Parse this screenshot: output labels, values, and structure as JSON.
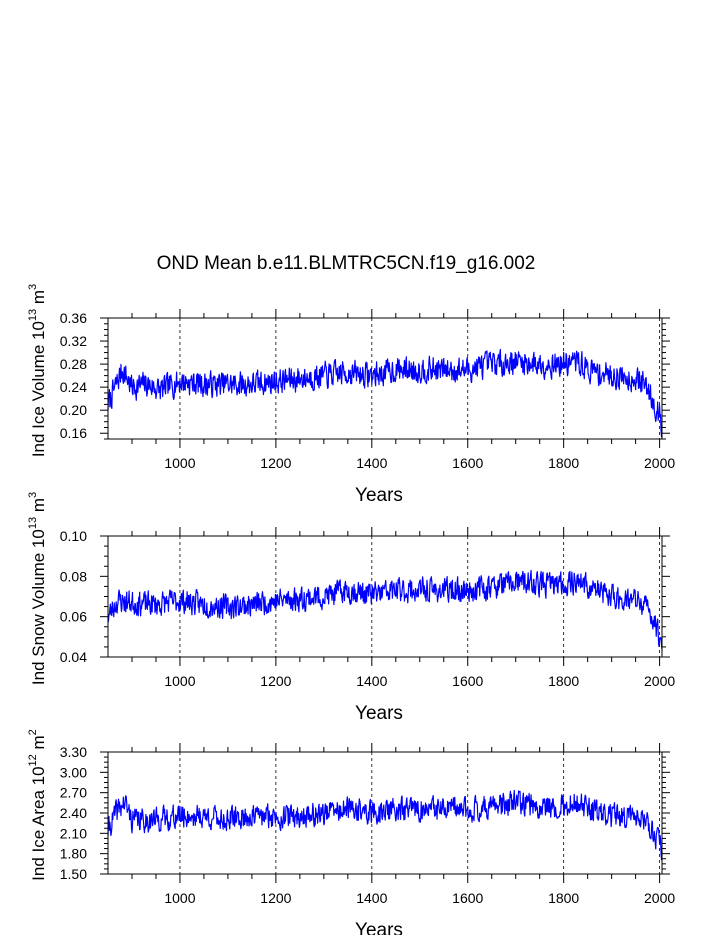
{
  "title": "OND Mean b.e11.BLMTRC5CN.f19_g16.002",
  "colors": {
    "series": "#0000ff",
    "axes": "#000000"
  },
  "chart_data": [
    {
      "type": "line",
      "title": "OND Mean b.e11.BLMTRC5CN.f19_g16.002",
      "xlabel": "Years",
      "ylabel": {
        "prefix": "Ind Ice Volume 10",
        "exp": "13",
        "unit": " m",
        "unit_exp": "3"
      },
      "xlim": [
        850,
        2005
      ],
      "ylim": [
        0.15,
        0.36
      ],
      "xticks": [
        1000,
        1200,
        1400,
        1600,
        1800,
        2000
      ],
      "yticks": [
        0.16,
        0.2,
        0.24,
        0.28,
        0.32,
        0.36
      ],
      "ytick_labels": [
        "0.16",
        "0.20",
        "0.24",
        "0.28",
        "0.32",
        "0.36"
      ],
      "series": [
        {
          "name": "Ind Ice Volume",
          "anchors": [
            [
              850,
              0.21
            ],
            [
              870,
              0.25
            ],
            [
              880,
              0.27
            ],
            [
              900,
              0.24
            ],
            [
              930,
              0.245
            ],
            [
              960,
              0.235
            ],
            [
              1000,
              0.25
            ],
            [
              1050,
              0.245
            ],
            [
              1100,
              0.245
            ],
            [
              1150,
              0.245
            ],
            [
              1200,
              0.25
            ],
            [
              1250,
              0.255
            ],
            [
              1300,
              0.26
            ],
            [
              1350,
              0.265
            ],
            [
              1400,
              0.26
            ],
            [
              1450,
              0.27
            ],
            [
              1500,
              0.27
            ],
            [
              1550,
              0.27
            ],
            [
              1600,
              0.27
            ],
            [
              1650,
              0.28
            ],
            [
              1700,
              0.285
            ],
            [
              1750,
              0.28
            ],
            [
              1800,
              0.28
            ],
            [
              1830,
              0.285
            ],
            [
              1850,
              0.27
            ],
            [
              1900,
              0.26
            ],
            [
              1950,
              0.255
            ],
            [
              1975,
              0.24
            ],
            [
              1990,
              0.21
            ],
            [
              2000,
              0.19
            ],
            [
              2005,
              0.175
            ]
          ],
          "noise": 0.02,
          "seed": 7
        }
      ]
    },
    {
      "type": "line",
      "title": "",
      "xlabel": "Years",
      "ylabel": {
        "prefix": "Ind Snow Volume 10",
        "exp": "13",
        "unit": " m",
        "unit_exp": "3"
      },
      "xlim": [
        850,
        2005
      ],
      "ylim": [
        0.04,
        0.1
      ],
      "xticks": [
        1000,
        1200,
        1400,
        1600,
        1800,
        2000
      ],
      "yticks": [
        0.04,
        0.06,
        0.08,
        0.1
      ],
      "ytick_labels": [
        "0.04",
        "0.06",
        "0.08",
        "0.10"
      ],
      "series": [
        {
          "name": "Ind Snow Volume",
          "anchors": [
            [
              850,
              0.06
            ],
            [
              870,
              0.068
            ],
            [
              900,
              0.067
            ],
            [
              950,
              0.066
            ],
            [
              1000,
              0.068
            ],
            [
              1050,
              0.066
            ],
            [
              1100,
              0.065
            ],
            [
              1150,
              0.066
            ],
            [
              1200,
              0.068
            ],
            [
              1250,
              0.069
            ],
            [
              1300,
              0.07
            ],
            [
              1350,
              0.073
            ],
            [
              1400,
              0.071
            ],
            [
              1450,
              0.073
            ],
            [
              1500,
              0.073
            ],
            [
              1550,
              0.073
            ],
            [
              1600,
              0.073
            ],
            [
              1650,
              0.075
            ],
            [
              1700,
              0.077
            ],
            [
              1750,
              0.076
            ],
            [
              1800,
              0.076
            ],
            [
              1830,
              0.078
            ],
            [
              1850,
              0.075
            ],
            [
              1900,
              0.07
            ],
            [
              1950,
              0.068
            ],
            [
              1975,
              0.064
            ],
            [
              1990,
              0.057
            ],
            [
              2000,
              0.05
            ],
            [
              2005,
              0.047
            ]
          ],
          "noise": 0.0055,
          "seed": 23
        }
      ]
    },
    {
      "type": "line",
      "title": "",
      "xlabel": "Years",
      "ylabel": {
        "prefix": "Ind Ice Area 10",
        "exp": "12",
        "unit": " m",
        "unit_exp": "2"
      },
      "xlim": [
        850,
        2005
      ],
      "ylim": [
        1.5,
        3.3
      ],
      "xticks": [
        1000,
        1200,
        1400,
        1600,
        1800,
        2000
      ],
      "yticks": [
        1.5,
        1.8,
        2.1,
        2.4,
        2.7,
        3.0,
        3.3
      ],
      "ytick_labels": [
        "1.50",
        "1.80",
        "2.10",
        "2.40",
        "2.70",
        "3.00",
        "3.30"
      ],
      "series": [
        {
          "name": "Ind Ice Area",
          "anchors": [
            [
              850,
              2.15
            ],
            [
              870,
              2.45
            ],
            [
              885,
              2.55
            ],
            [
              900,
              2.3
            ],
            [
              950,
              2.3
            ],
            [
              1000,
              2.35
            ],
            [
              1050,
              2.35
            ],
            [
              1100,
              2.3
            ],
            [
              1150,
              2.35
            ],
            [
              1200,
              2.35
            ],
            [
              1250,
              2.35
            ],
            [
              1300,
              2.4
            ],
            [
              1350,
              2.45
            ],
            [
              1400,
              2.4
            ],
            [
              1450,
              2.45
            ],
            [
              1500,
              2.45
            ],
            [
              1550,
              2.45
            ],
            [
              1600,
              2.45
            ],
            [
              1650,
              2.5
            ],
            [
              1700,
              2.55
            ],
            [
              1750,
              2.5
            ],
            [
              1800,
              2.5
            ],
            [
              1830,
              2.55
            ],
            [
              1850,
              2.45
            ],
            [
              1900,
              2.35
            ],
            [
              1950,
              2.35
            ],
            [
              1975,
              2.25
            ],
            [
              1990,
              2.05
            ],
            [
              2000,
              1.95
            ],
            [
              2005,
              1.85
            ]
          ],
          "noise": 0.16,
          "seed": 41
        }
      ]
    }
  ]
}
